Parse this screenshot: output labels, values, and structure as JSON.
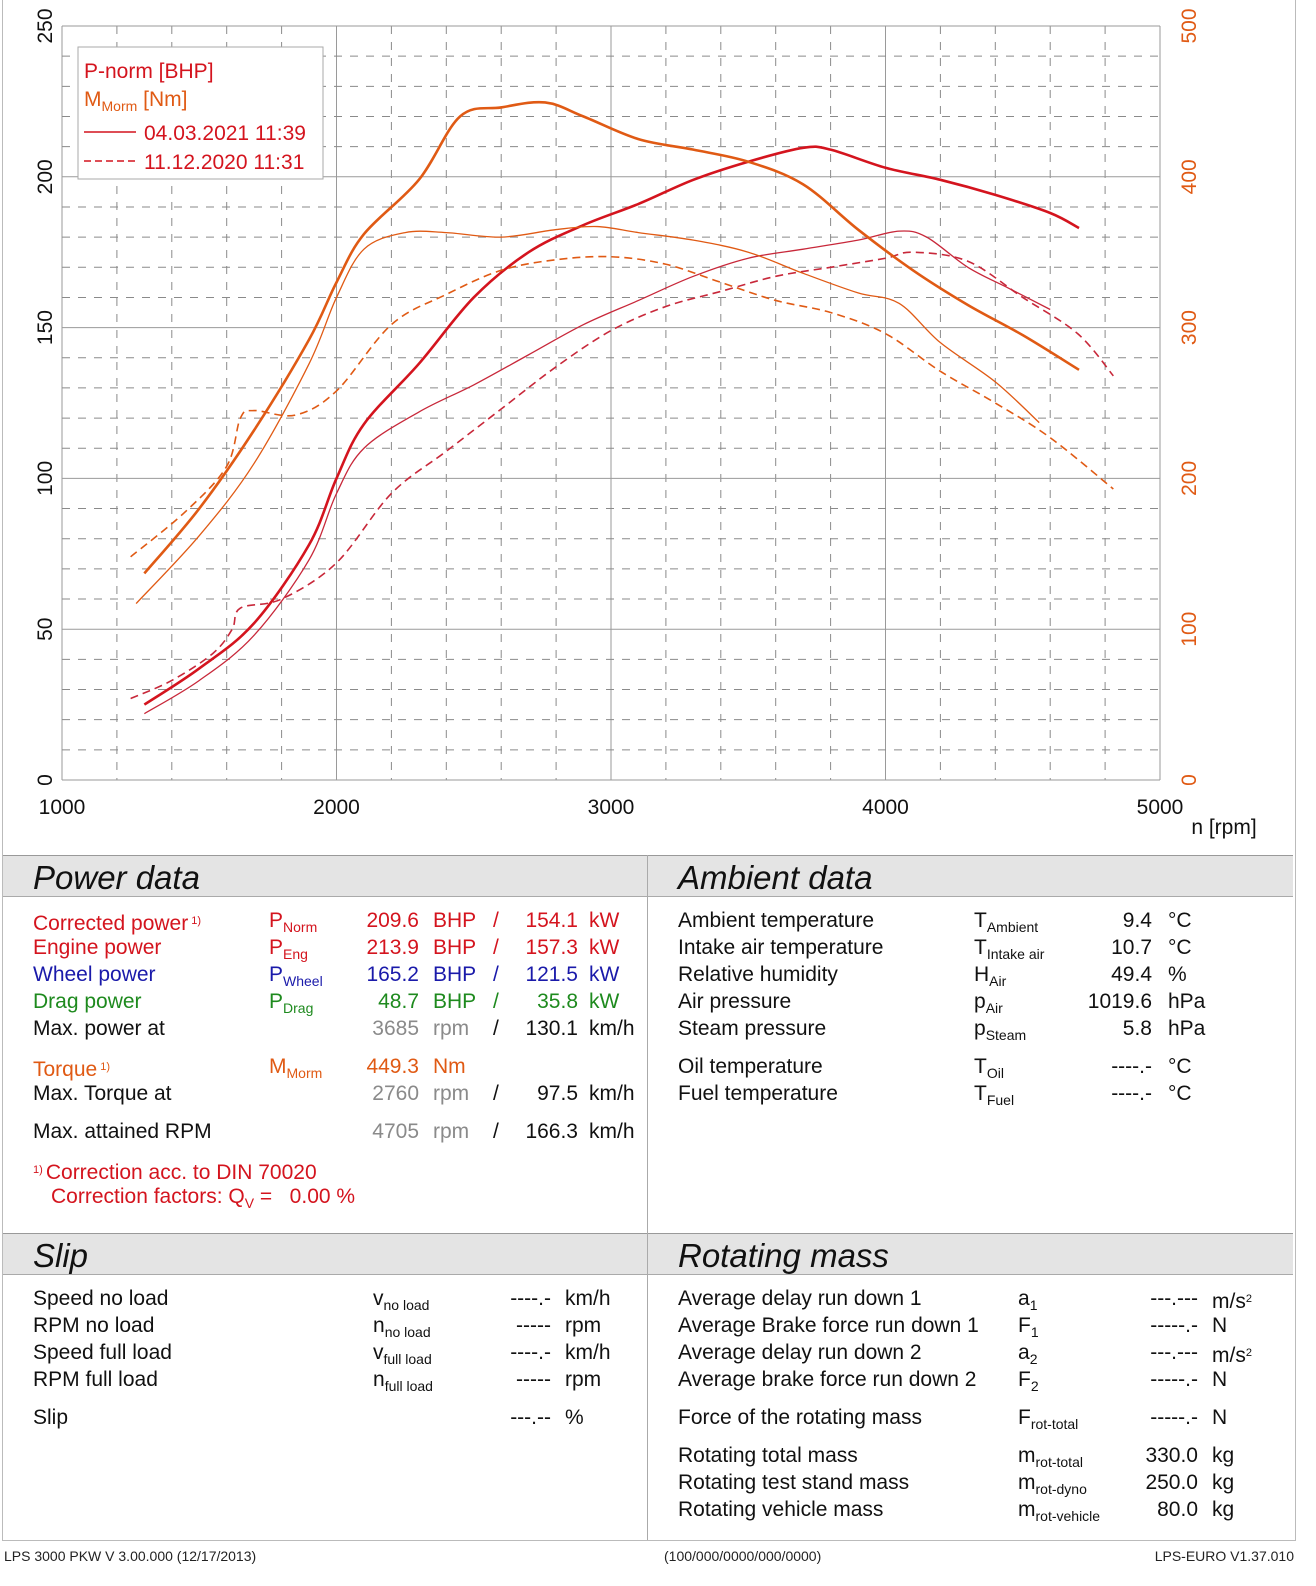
{
  "chart_data": {
    "type": "line",
    "title": "",
    "xlabel": "n [rpm]",
    "ylabel_left": "P-norm [BHP]",
    "ylabel_right": "M [Nm]",
    "xlim": [
      1000,
      5000
    ],
    "ylim_left": [
      0,
      250
    ],
    "ylim_right": [
      0,
      500
    ],
    "x_ticks": [
      1000,
      2000,
      3000,
      4000,
      5000
    ],
    "y_ticks_left": [
      0,
      50,
      100,
      150,
      200,
      250
    ],
    "y_ticks_right": [
      0,
      100,
      200,
      300,
      400,
      500
    ],
    "grid": true,
    "legend": {
      "position": "top-left",
      "entries": [
        {
          "label": "P-norm [BHP]",
          "color": "#d4141e"
        },
        {
          "label_main": "M",
          "label_sub": "Morm",
          "label_tail": " [Nm]",
          "color": "#e05a14"
        },
        {
          "label": "04.03.2021 11:39",
          "style": "solid",
          "color": "#d4141e"
        },
        {
          "label": "11.12.2020 11:31",
          "style": "dashed",
          "color": "#d4141e"
        }
      ]
    },
    "series": [
      {
        "name": "P-norm 04.03.2021",
        "axis": "left",
        "color": "#d4141e",
        "style": "solid",
        "weight": "heavy",
        "x": [
          1300,
          1500,
          1700,
          1900,
          2000,
          2100,
          2300,
          2500,
          2700,
          2900,
          3100,
          3300,
          3500,
          3700,
          3800,
          4000,
          4200,
          4400,
          4600,
          4705
        ],
        "y": [
          25,
          37,
          52,
          78,
          100,
          118,
          138,
          160,
          175,
          184,
          191,
          199,
          205,
          209.6,
          209,
          203,
          199,
          194,
          188,
          183
        ]
      },
      {
        "name": "P-wheel 04.03.2021",
        "axis": "left",
        "color": "#c8283a",
        "style": "solid",
        "weight": "thin",
        "x": [
          1300,
          1500,
          1700,
          1900,
          2000,
          2100,
          2300,
          2500,
          2700,
          2900,
          3100,
          3300,
          3500,
          3700,
          3900,
          4050,
          4150,
          4300,
          4450,
          4600
        ],
        "y": [
          22,
          33,
          48,
          73,
          95,
          110,
          122,
          131,
          141,
          151,
          159,
          167,
          173,
          176,
          179,
          182,
          180,
          170,
          163,
          156
        ]
      },
      {
        "name": "P-norm 11.12.2020",
        "axis": "left",
        "color": "#c8283a",
        "style": "dashed",
        "weight": "normal",
        "x": [
          1250,
          1400,
          1550,
          1620,
          1650,
          1800,
          2000,
          2200,
          2400,
          2600,
          2800,
          3000,
          3200,
          3400,
          3600,
          3800,
          4000,
          4100,
          4300,
          4500,
          4700,
          4830
        ],
        "y": [
          27,
          33,
          42,
          50,
          57,
          60,
          72,
          95,
          109,
          123,
          137,
          149,
          157,
          162,
          167,
          170,
          173,
          175,
          172,
          160,
          148,
          134
        ]
      },
      {
        "name": "M-norm 04.03.2021",
        "axis": "right",
        "color": "#e05a14",
        "style": "solid",
        "weight": "heavy",
        "x": [
          1300,
          1500,
          1700,
          1900,
          2000,
          2100,
          2300,
          2450,
          2600,
          2760,
          2900,
          3100,
          3300,
          3500,
          3700,
          3900,
          4100,
          4300,
          4500,
          4705
        ],
        "y": [
          137,
          180,
          232,
          292,
          330,
          362,
          398,
          440,
          446,
          449.3,
          440,
          425,
          418,
          410,
          395,
          365,
          338,
          315,
          295,
          272
        ]
      },
      {
        "name": "M-wheel 04.03.2021",
        "axis": "right",
        "color": "#e05a14",
        "style": "solid",
        "weight": "thin",
        "x": [
          1270,
          1500,
          1700,
          1900,
          2000,
          2100,
          2250,
          2400,
          2600,
          2800,
          2950,
          3100,
          3300,
          3500,
          3700,
          3900,
          4050,
          4200,
          4400,
          4560
        ],
        "y": [
          117,
          162,
          210,
          276,
          320,
          352,
          363,
          363,
          360,
          365,
          367,
          363,
          358,
          350,
          336,
          323,
          316,
          290,
          264,
          237
        ]
      },
      {
        "name": "M-norm 11.12.2020",
        "axis": "right",
        "color": "#e05a14",
        "style": "dashed",
        "weight": "normal",
        "x": [
          1250,
          1450,
          1600,
          1650,
          1700,
          1850,
          2000,
          2200,
          2400,
          2600,
          2800,
          3000,
          3200,
          3400,
          3600,
          3800,
          4000,
          4200,
          4400,
          4600,
          4830
        ],
        "y": [
          148,
          178,
          208,
          240,
          245,
          242,
          258,
          302,
          322,
          338,
          345,
          347,
          342,
          330,
          318,
          310,
          296,
          271,
          250,
          227,
          193
        ]
      }
    ]
  },
  "power_data": {
    "title": "Power data",
    "rows": [
      {
        "label": "Corrected power",
        "note": "1)",
        "sym": "P",
        "sub": "Norm",
        "v1": "209.6",
        "u1": "BHP",
        "sep": "/",
        "v2": "154.1",
        "u2": "kW",
        "color": "red"
      },
      {
        "label": "Engine power",
        "sym": "P",
        "sub": "Eng",
        "v1": "213.9",
        "u1": "BHP",
        "sep": "/",
        "v2": "157.3",
        "u2": "kW",
        "color": "red"
      },
      {
        "label": "Wheel power",
        "sym": "P",
        "sub": "Wheel",
        "v1": "165.2",
        "u1": "BHP",
        "sep": "/",
        "v2": "121.5",
        "u2": "kW",
        "color": "blue"
      },
      {
        "label": "Drag power",
        "sym": "P",
        "sub": "Drag",
        "v1": "48.7",
        "u1": "BHP",
        "sep": "/",
        "v2": "35.8",
        "u2": "kW",
        "color": "green"
      },
      {
        "label": "Max. power at",
        "v1": "3685",
        "u1": "rpm",
        "sep": "/",
        "v2": "130.1",
        "u2": "km/h"
      },
      {
        "label": "Torque",
        "note": "1)",
        "sym": "M",
        "sub": "Morm",
        "v1": "449.3",
        "u1": "Nm",
        "color": "orange"
      },
      {
        "label": "Max. Torque at",
        "v1": "2760",
        "u1": "rpm",
        "sep": "/",
        "v2": "97.5",
        "u2": "km/h"
      },
      {
        "label": "Max. attained RPM",
        "v1": "4705",
        "u1": "rpm",
        "sep": "/",
        "v2": "166.3",
        "u2": "km/h"
      }
    ],
    "footnote_marker": "1)",
    "footnote_line1": "Correction acc. to DIN 70020",
    "footnote_line2_pre": "Correction factors: Q",
    "footnote_line2_sub": "V",
    "footnote_line2_post": " =   0.00 %"
  },
  "ambient_data": {
    "title": "Ambient data",
    "rows": [
      {
        "label": "Ambient temperature",
        "sym": "T",
        "sub": "Ambient",
        "value": "9.4",
        "unit": "°C"
      },
      {
        "label": "Intake air temperature",
        "sym": "T",
        "sub": "Intake air",
        "value": "10.7",
        "unit": "°C"
      },
      {
        "label": "Relative humidity",
        "sym": "H",
        "sub": "Air",
        "value": "49.4",
        "unit": "%"
      },
      {
        "label": "Air pressure",
        "sym": "p",
        "sub": "Air",
        "value": "1019.6",
        "unit": "hPa"
      },
      {
        "label": "Steam pressure",
        "sym": "p",
        "sub": "Steam",
        "value": "5.8",
        "unit": "hPa"
      },
      {
        "label": "Oil temperature",
        "sym": "T",
        "sub": "Oil",
        "value": "----.-",
        "unit": "°C"
      },
      {
        "label": "Fuel temperature",
        "sym": "T",
        "sub": "Fuel",
        "value": "----.-",
        "unit": "°C"
      }
    ]
  },
  "slip": {
    "title": "Slip",
    "rows": [
      {
        "label": "Speed no load",
        "sym": "v",
        "sub": "no load",
        "value": "----.-",
        "unit": "km/h"
      },
      {
        "label": "RPM no load",
        "sym": "n",
        "sub": "no load",
        "value": "-----",
        "unit": "rpm"
      },
      {
        "label": "Speed full load",
        "sym": "v",
        "sub": "full load",
        "value": "----.-",
        "unit": "km/h"
      },
      {
        "label": "RPM full load",
        "sym": "n",
        "sub": "full load",
        "value": "-----",
        "unit": "rpm"
      },
      {
        "label": "Slip",
        "sym": "",
        "sub": "",
        "value": "---.--",
        "unit": "%"
      }
    ]
  },
  "rotating_mass": {
    "title": "Rotating mass",
    "rows": [
      {
        "label": "Average delay run down 1",
        "sym": "a",
        "sub": "1",
        "value": "---.---",
        "unit": "m/s",
        "unit_sup": "2"
      },
      {
        "label": "Average Brake force run down 1",
        "sym": "F",
        "sub": "1",
        "value": "-----.-",
        "unit": "N"
      },
      {
        "label": "Average delay run down 2",
        "sym": "a",
        "sub": "2",
        "value": "---.---",
        "unit": "m/s",
        "unit_sup": "2"
      },
      {
        "label": "Average brake force run down 2",
        "sym": "F",
        "sub": "2",
        "value": "-----.-",
        "unit": "N"
      },
      {
        "label": "Force of the rotating mass",
        "sym": "F",
        "sub": "rot-total",
        "value": "-----.-",
        "unit": "N"
      },
      {
        "label": "Rotating total mass",
        "sym": "m",
        "sub": "rot-total",
        "value": "330.0",
        "unit": "kg"
      },
      {
        "label": "Rotating test stand mass",
        "sym": "m",
        "sub": "rot-dyno",
        "value": "250.0",
        "unit": "kg"
      },
      {
        "label": "Rotating vehicle mass",
        "sym": "m",
        "sub": "rot-vehicle",
        "value": "80.0",
        "unit": "kg"
      }
    ]
  },
  "footer": {
    "left": "LPS 3000 PKW V 3.00.000 (12/17/2013)",
    "center": "(100/000/0000/000/0000)",
    "right": "LPS-EURO V1.37.010"
  },
  "colors": {
    "red": "#d4141e",
    "blue": "#1a1aaa",
    "green": "#1e8a1e",
    "orange": "#e05a14",
    "gray": "#8a8a8a",
    "wheel_red": "#c8283a"
  }
}
